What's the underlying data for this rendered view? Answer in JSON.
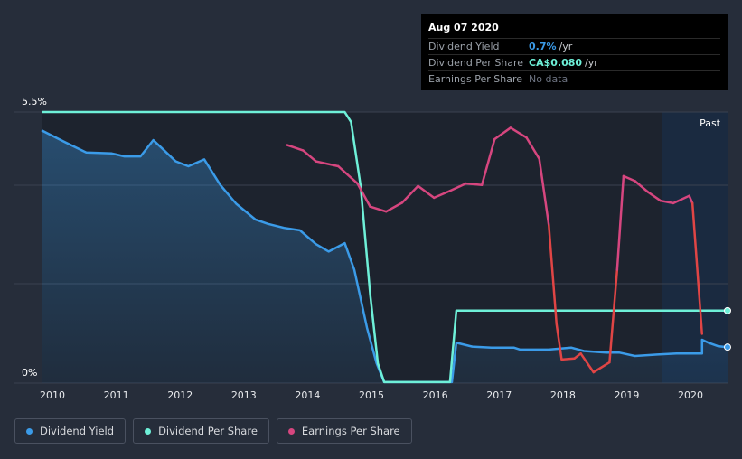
{
  "tooltip": {
    "date": "Aug 07 2020",
    "rows": [
      {
        "label": "Dividend Yield",
        "value": "0.7%",
        "unit": "/yr",
        "color": "#3b9be8"
      },
      {
        "label": "Dividend Per Share",
        "value": "CA$0.080",
        "unit": "/yr",
        "color": "#6ef0d8"
      },
      {
        "label": "Earnings Per Share",
        "value": "No data",
        "unit": "",
        "color": "#6c7280"
      }
    ]
  },
  "legend": [
    {
      "label": "Dividend Yield",
      "color": "#3b9be8"
    },
    {
      "label": "Dividend Per Share",
      "color": "#6ef0d8"
    },
    {
      "label": "Earnings Per Share",
      "color": "#d6467f"
    }
  ],
  "chart_data": {
    "type": "line",
    "y_ticks": [
      "5.5%",
      "0%"
    ],
    "ylim": [
      0,
      5.5
    ],
    "xlim": [
      2009.85,
      2020.6
    ],
    "x_ticks": [
      2010,
      2011,
      2012,
      2013,
      2014,
      2015,
      2016,
      2017,
      2018,
      2019,
      2020
    ],
    "past_label": "Past",
    "past_start": 2019.58,
    "grid": true,
    "series": [
      {
        "name": "Dividend Yield",
        "color": "#3b9be8",
        "area": true,
        "points": [
          [
            2009.85,
            5.13
          ],
          [
            2010.2,
            4.9
          ],
          [
            2010.55,
            4.68
          ],
          [
            2010.95,
            4.66
          ],
          [
            2011.15,
            4.6
          ],
          [
            2011.4,
            4.6
          ],
          [
            2011.6,
            4.93
          ],
          [
            2011.75,
            4.75
          ],
          [
            2011.95,
            4.5
          ],
          [
            2012.15,
            4.4
          ],
          [
            2012.4,
            4.54
          ],
          [
            2012.65,
            4.02
          ],
          [
            2012.9,
            3.64
          ],
          [
            2013.2,
            3.32
          ],
          [
            2013.4,
            3.23
          ],
          [
            2013.65,
            3.15
          ],
          [
            2013.9,
            3.1
          ],
          [
            2014.15,
            2.82
          ],
          [
            2014.35,
            2.67
          ],
          [
            2014.6,
            2.84
          ],
          [
            2014.75,
            2.3
          ],
          [
            2014.95,
            1.12
          ],
          [
            2015.1,
            0.4
          ],
          [
            2015.22,
            0.02
          ],
          [
            2016.28,
            0.02
          ],
          [
            2016.35,
            0.82
          ],
          [
            2016.6,
            0.74
          ],
          [
            2016.9,
            0.72
          ],
          [
            2017.25,
            0.72
          ],
          [
            2017.35,
            0.68
          ],
          [
            2017.8,
            0.68
          ],
          [
            2018.15,
            0.72
          ],
          [
            2018.35,
            0.65
          ],
          [
            2018.7,
            0.62
          ],
          [
            2018.9,
            0.62
          ],
          [
            2019.15,
            0.55
          ],
          [
            2019.5,
            0.58
          ],
          [
            2019.8,
            0.6
          ],
          [
            2020.2,
            0.6
          ],
          [
            2020.2,
            0.88
          ],
          [
            2020.3,
            0.82
          ],
          [
            2020.45,
            0.75
          ],
          [
            2020.6,
            0.73
          ]
        ]
      },
      {
        "name": "Dividend Per Share",
        "color": "#6ef0d8",
        "area": false,
        "points": [
          [
            2009.85,
            5.5
          ],
          [
            2014.6,
            5.5
          ],
          [
            2014.7,
            5.3
          ],
          [
            2014.85,
            4.0
          ],
          [
            2015.0,
            1.8
          ],
          [
            2015.12,
            0.4
          ],
          [
            2015.22,
            0.02
          ],
          [
            2016.25,
            0.02
          ],
          [
            2016.35,
            1.47
          ],
          [
            2020.6,
            1.47
          ]
        ]
      },
      {
        "name": "Earnings Per Share",
        "color": "#d6467f",
        "color_negative": "#e04545",
        "area": false,
        "points": [
          [
            2013.7,
            4.83
          ],
          [
            2013.95,
            4.72
          ],
          [
            2014.15,
            4.5
          ],
          [
            2014.5,
            4.4
          ],
          [
            2014.8,
            4.05
          ],
          [
            2015.0,
            3.58
          ],
          [
            2015.25,
            3.48
          ],
          [
            2015.5,
            3.66
          ],
          [
            2015.75,
            4.0
          ],
          [
            2016.0,
            3.76
          ],
          [
            2016.25,
            3.9
          ],
          [
            2016.5,
            4.05
          ],
          [
            2016.75,
            4.02
          ],
          [
            2016.95,
            4.95
          ],
          [
            2017.2,
            5.18
          ],
          [
            2017.45,
            4.98
          ],
          [
            2017.65,
            4.55
          ],
          [
            2017.8,
            3.2
          ],
          [
            2017.92,
            1.2
          ],
          [
            2018.0,
            0.48
          ],
          [
            2018.2,
            0.5
          ],
          [
            2018.3,
            0.6
          ],
          [
            2018.5,
            0.22
          ],
          [
            2018.75,
            0.42
          ],
          [
            2018.87,
            2.3
          ],
          [
            2018.97,
            4.2
          ],
          [
            2019.15,
            4.1
          ],
          [
            2019.35,
            3.88
          ],
          [
            2019.55,
            3.7
          ],
          [
            2019.75,
            3.65
          ],
          [
            2020.0,
            3.8
          ],
          [
            2020.05,
            3.65
          ],
          [
            2020.2,
            1.0
          ]
        ]
      }
    ]
  }
}
